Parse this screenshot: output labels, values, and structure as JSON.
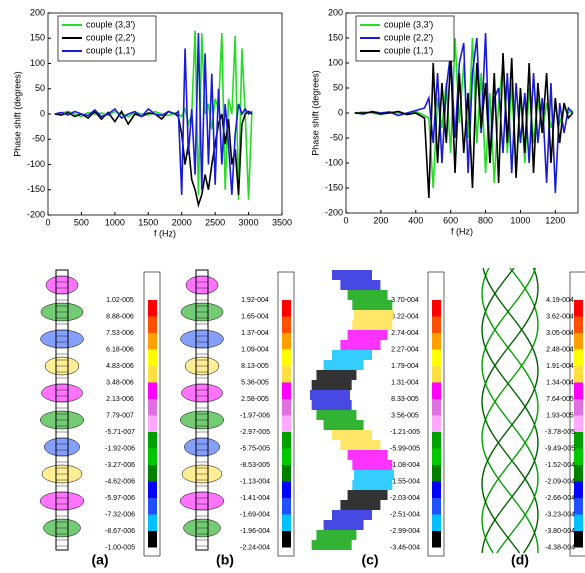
{
  "chart_data": [
    {
      "type": "line",
      "xlabel": "f (Hz)",
      "ylabel": "Phase shift (degrees)",
      "xlim": [
        0,
        3500
      ],
      "ylim": [
        -200,
        200
      ],
      "xticks": [
        0,
        500,
        1000,
        1500,
        2000,
        2500,
        3000,
        3500
      ],
      "yticks": [
        -200,
        -150,
        -100,
        -50,
        0,
        50,
        100,
        150,
        200
      ],
      "grid": false,
      "legend": "upper left",
      "x": [
        100,
        200,
        300,
        400,
        500,
        600,
        700,
        800,
        900,
        1000,
        1100,
        1200,
        1300,
        1400,
        1500,
        1600,
        1700,
        1800,
        1900,
        1950,
        2000,
        2050,
        2100,
        2150,
        2200,
        2250,
        2300,
        2350,
        2400,
        2450,
        2500,
        2550,
        2600,
        2650,
        2700,
        2750,
        2800,
        2850,
        2900,
        2950,
        3000,
        3050
      ],
      "series": [
        {
          "name": "couple (3,3')",
          "color": "#22dd22",
          "values": [
            0,
            2,
            5,
            0,
            -5,
            3,
            0,
            2,
            -3,
            5,
            0,
            -5,
            3,
            0,
            -2,
            5,
            0,
            -3,
            2,
            0,
            -5,
            10,
            -20,
            0,
            165,
            -160,
            160,
            0,
            20,
            -30,
            30,
            10,
            160,
            -150,
            30,
            0,
            155,
            -170,
            130,
            0,
            -170,
            5
          ]
        },
        {
          "name": "couple (2,2')",
          "color": "#000000",
          "values": [
            0,
            -2,
            3,
            -5,
            0,
            -8,
            5,
            -10,
            3,
            -15,
            5,
            -20,
            0,
            -5,
            2,
            0,
            -10,
            5,
            0,
            -5,
            -40,
            -100,
            -60,
            -130,
            -150,
            -180,
            -160,
            -120,
            -150,
            -100,
            -60,
            -20,
            0,
            -60,
            -10,
            -100,
            -70,
            -160,
            -20,
            0,
            5,
            0
          ]
        },
        {
          "name": "couple (1,1')",
          "color": "#1a1adc",
          "values": [
            0,
            3,
            -2,
            5,
            0,
            -3,
            8,
            -5,
            0,
            10,
            -8,
            0,
            5,
            -5,
            10,
            0,
            -3,
            5,
            0,
            5,
            -160,
            130,
            -80,
            10,
            -120,
            160,
            -150,
            120,
            -100,
            80,
            -140,
            50,
            -100,
            20,
            -60,
            -160,
            -40,
            20,
            0,
            10,
            0,
            5
          ]
        }
      ]
    },
    {
      "type": "line",
      "xlabel": "f (Hz)",
      "ylabel": "Phase shift (degrees)",
      "xlim": [
        0,
        1330
      ],
      "ylim": [
        -200,
        200
      ],
      "xticks": [
        0,
        200,
        400,
        600,
        800,
        1000,
        1200
      ],
      "yticks": [
        -200,
        -150,
        -100,
        -50,
        0,
        50,
        100,
        150,
        200
      ],
      "grid": false,
      "legend": "upper left",
      "x": [
        50,
        100,
        150,
        200,
        250,
        300,
        350,
        400,
        450,
        475,
        500,
        525,
        550,
        575,
        600,
        625,
        650,
        675,
        700,
        725,
        750,
        775,
        800,
        825,
        850,
        875,
        900,
        925,
        950,
        975,
        1000,
        1025,
        1050,
        1075,
        1100,
        1125,
        1150,
        1175,
        1200,
        1225,
        1250,
        1275,
        1300
      ],
      "series": [
        {
          "name": "couple (3,3')",
          "color": "#22dd22",
          "values": [
            0,
            2,
            0,
            -3,
            2,
            0,
            -2,
            3,
            -5,
            -10,
            -150,
            30,
            -30,
            60,
            -80,
            150,
            -20,
            100,
            -50,
            150,
            -60,
            80,
            -120,
            40,
            -140,
            20,
            100,
            -80,
            60,
            -120,
            40,
            -100,
            50,
            -60,
            30,
            -40,
            20,
            -30,
            10,
            -20,
            10,
            0,
            5
          ]
        },
        {
          "name": "couple (2,2')",
          "color": "#1a1adc",
          "values": [
            0,
            -2,
            3,
            0,
            2,
            -5,
            0,
            5,
            10,
            30,
            -60,
            80,
            -100,
            50,
            120,
            -50,
            100,
            140,
            -120,
            80,
            150,
            -40,
            160,
            -100,
            30,
            50,
            -80,
            80,
            -120,
            60,
            -60,
            40,
            -100,
            80,
            -60,
            30,
            -140,
            60,
            -160,
            20,
            -40,
            10,
            0
          ]
        },
        {
          "name": "couple (1,1')",
          "color": "#000000",
          "values": [
            0,
            0,
            2,
            -2,
            0,
            3,
            -3,
            0,
            -10,
            -170,
            100,
            -100,
            60,
            -60,
            110,
            -120,
            80,
            -80,
            40,
            -150,
            100,
            -30,
            60,
            -100,
            80,
            -140,
            120,
            -60,
            110,
            -130,
            50,
            -80,
            100,
            -120,
            60,
            -40,
            80,
            -100,
            30,
            -60,
            20,
            -10,
            0
          ]
        }
      ]
    }
  ],
  "colorbar_colors": [
    "#ff0000",
    "#ff5000",
    "#ffa000",
    "#ffff00",
    "#ffe040",
    "#ff00ff",
    "#e070e0",
    "#ffa8ff",
    "#00a000",
    "#00c800",
    "#008000",
    "#0000ff",
    "#2050ff",
    "#00c0ff",
    "#000000"
  ],
  "panels": [
    {
      "label": "(a)",
      "colorbar_labels": [
        "1.02-005",
        "8.88-006",
        "7.53-006",
        "6.18-006",
        "4.83-006",
        "3.48-006",
        "2.13-006",
        "7.79-007",
        "-5.71-007",
        "-1.92-006",
        "-3.27-006",
        "-4.62-006",
        "-5.97-006",
        "-7.32-006",
        "-8.67-006",
        "-1.00-005"
      ]
    },
    {
      "label": "(b)",
      "colorbar_labels": [
        "1.92-004",
        "1.65-004",
        "1.37-004",
        "1.09-004",
        "8.13-005",
        "5.36-005",
        "2.58-005",
        "-1.97-006",
        "-2.97-005",
        "-5.75-005",
        "-8.53-005",
        "-1.13-004",
        "-1.41-004",
        "-1.69-004",
        "-1.96-004",
        "-2.24-004"
      ]
    },
    {
      "label": "(c)",
      "colorbar_labels": [
        "3.70-004",
        "3.22-004",
        "2.74-004",
        "2.27-004",
        "1.79-004",
        "1.31-004",
        "8.33-005",
        "3.56-005",
        "-1.21-005",
        "-5.99-005",
        "-1.08-004",
        "-1.55-004",
        "-2.03-004",
        "-2.51-004",
        "-2.99-004",
        "-3.46-004"
      ]
    },
    {
      "label": "(d)",
      "colorbar_labels": [
        "4.19-004",
        "3.62-004",
        "3.05-004",
        "2.48-004",
        "1.91-004",
        "1.34-004",
        "7.64-005",
        "1.93-005",
        "-3.78-005",
        "-9.49-005",
        "-1.52-004",
        "-2.09-004",
        "-2.66-004",
        "-3.23-004",
        "-3.80-004",
        "-4.38-004"
      ]
    }
  ]
}
